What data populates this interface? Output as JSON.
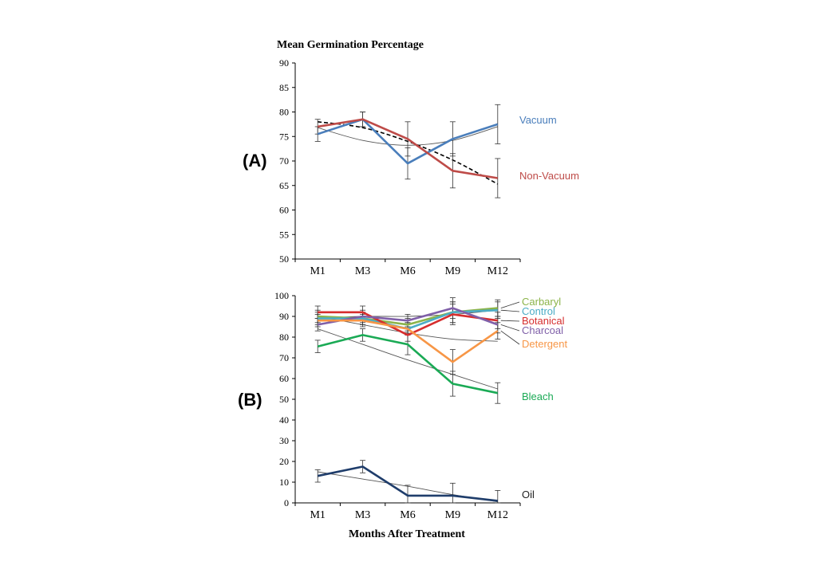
{
  "chart_data": [
    {
      "panel": "(A)",
      "type": "line",
      "title": "Mean Germination Percentage",
      "xlabel": "",
      "ylabel": "",
      "categories": [
        "M1",
        "M3",
        "M6",
        "M9",
        "M12"
      ],
      "ylim": [
        50,
        90
      ],
      "yticks": [
        50,
        55,
        60,
        65,
        70,
        75,
        80,
        85,
        90
      ],
      "series": [
        {
          "name": "Vacuum",
          "color": "#4a7ebb",
          "values": [
            75.5,
            78.5,
            69.5,
            74.5,
            77.5
          ],
          "errors": [
            1.5,
            1.5,
            3.2,
            3.5,
            4.0
          ]
        },
        {
          "name": "Non-Vacuum",
          "color": "#be4b48",
          "values": [
            77.0,
            78.5,
            74.5,
            68.0,
            66.5
          ],
          "errors": [
            1.5,
            1.5,
            3.5,
            3.5,
            4.0
          ]
        }
      ],
      "trendlines": [
        {
          "series": "Vacuum",
          "style": "solid",
          "values": [
            76.8,
            74.2,
            73.2,
            74.2,
            77.0
          ]
        },
        {
          "series": "Non-Vacuum",
          "style": "dashed",
          "values": [
            78.0,
            76.8,
            74.0,
            70.2,
            65.3
          ]
        }
      ]
    },
    {
      "panel": "(B)",
      "type": "line",
      "title": "",
      "xlabel": "Months After Treatment",
      "ylabel": "",
      "categories": [
        "M1",
        "M3",
        "M6",
        "M9",
        "M12"
      ],
      "ylim": [
        0,
        100
      ],
      "yticks": [
        0,
        10,
        20,
        30,
        40,
        50,
        60,
        70,
        80,
        90,
        100
      ],
      "series": [
        {
          "name": "Carbaryl",
          "color": "#8cb44a",
          "values": [
            90,
            89,
            86,
            92,
            94
          ],
          "errors": [
            3,
            3,
            3,
            5,
            4
          ]
        },
        {
          "name": "Control",
          "color": "#4bacc6",
          "values": [
            89,
            89,
            84,
            92,
            93
          ],
          "errors": [
            3,
            3,
            3,
            5,
            4
          ]
        },
        {
          "name": "Botanical",
          "color": "#d62e2e",
          "values": [
            92,
            92,
            81,
            91,
            88
          ],
          "errors": [
            3,
            3,
            3,
            5,
            4
          ]
        },
        {
          "name": "Charcoal",
          "color": "#7f5fa8",
          "values": [
            86,
            90,
            88,
            94,
            86
          ],
          "errors": [
            3,
            3,
            3,
            5,
            4
          ]
        },
        {
          "name": "Detergent",
          "color": "#f79646",
          "values": [
            88,
            88,
            84,
            68,
            83
          ],
          "errors": [
            3,
            3,
            3,
            6,
            4
          ]
        },
        {
          "name": "Bleach",
          "color": "#1aaa55",
          "values": [
            75.5,
            81,
            76.5,
            57.5,
            53
          ],
          "errors": [
            3,
            3,
            5,
            6,
            5
          ]
        },
        {
          "name": "Oil",
          "color": "#1f3d6b",
          "values": [
            13,
            17.5,
            3.5,
            3.5,
            1
          ],
          "errors": [
            3,
            3,
            5,
            6,
            5
          ]
        }
      ],
      "trendlines": [
        {
          "series": "Carbaryl",
          "style": "solid",
          "values": [
            89,
            90,
            90,
            91,
            93
          ]
        },
        {
          "series": "Detergent",
          "style": "solid",
          "values": [
            90,
            86,
            82,
            79,
            78
          ]
        },
        {
          "series": "Bleach",
          "style": "solid",
          "values": [
            84,
            76.5,
            69,
            62,
            55
          ]
        },
        {
          "series": "Oil",
          "style": "solid",
          "values": [
            15,
            11.5,
            8,
            4,
            0.5
          ]
        }
      ]
    }
  ]
}
